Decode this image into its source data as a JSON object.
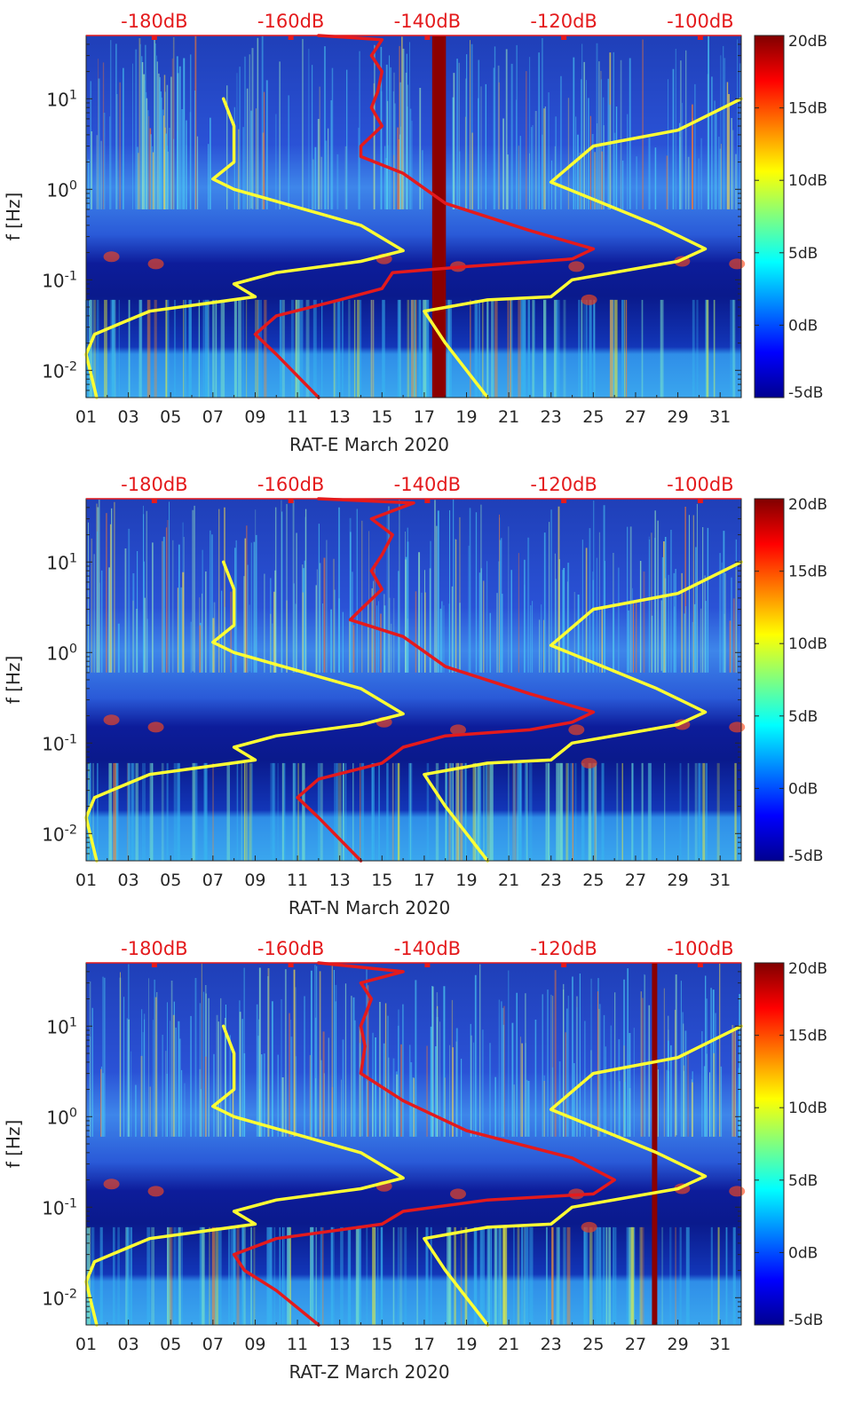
{
  "chart_data": [
    {
      "type": "heatmap",
      "title": "",
      "xlabel": "RAT-E March 2020",
      "ylabel": "f [Hz]",
      "x_tick_labels": [
        "01",
        "03",
        "05",
        "07",
        "09",
        "11",
        "13",
        "15",
        "17",
        "19",
        "21",
        "23",
        "25",
        "27",
        "29",
        "31"
      ],
      "x_range_days": [
        1,
        32
      ],
      "y_scale": "log",
      "y_range_hz": [
        0.005,
        50
      ],
      "y_tick_labels": [
        "10^-2",
        "10^-1",
        "10^0",
        "10^1"
      ],
      "top_axis_labels": [
        "-180dB",
        "-160dB",
        "-140dB",
        "-120dB",
        "-100dB"
      ],
      "top_axis_range_db": [
        -190,
        -94
      ],
      "colorbar": {
        "labels": [
          "20dB",
          "15dB",
          "10dB",
          "5dB",
          "0dB",
          "-5dB"
        ],
        "range_db": [
          -5,
          20
        ]
      },
      "vertical_bands": [
        {
          "day": 17.7,
          "width_days": 0.65
        }
      ],
      "series": [
        {
          "name": "yellow_model_low",
          "color": "#ffff33",
          "points": [
            [
              1.5,
              0.005
            ],
            [
              1.0,
              0.015
            ],
            [
              1.4,
              0.025
            ],
            [
              4,
              0.045
            ],
            [
              9,
              0.065
            ],
            [
              8,
              0.09
            ],
            [
              10,
              0.12
            ],
            [
              14,
              0.16
            ],
            [
              16,
              0.21
            ],
            [
              14,
              0.4
            ],
            [
              8,
              1.0
            ],
            [
              7,
              1.3
            ],
            [
              8,
              2
            ],
            [
              8,
              5
            ],
            [
              7.5,
              10
            ]
          ]
        },
        {
          "name": "yellow_model_high",
          "color": "#ffff33",
          "points": [
            [
              20,
              0.005
            ],
            [
              18,
              0.02
            ],
            [
              17,
              0.045
            ],
            [
              20,
              0.06
            ],
            [
              23,
              0.065
            ],
            [
              24,
              0.1
            ],
            [
              29,
              0.16
            ],
            [
              30.3,
              0.22
            ],
            [
              28,
              0.4
            ],
            [
              23,
              1.2
            ],
            [
              25,
              3
            ],
            [
              29,
              4.5
            ],
            [
              32,
              10
            ]
          ]
        },
        {
          "name": "red_noise_level",
          "color": "#e41a1c",
          "points": [
            [
              12,
              0.005
            ],
            [
              10,
              0.015
            ],
            [
              9,
              0.025
            ],
            [
              10,
              0.04
            ],
            [
              13,
              0.06
            ],
            [
              15,
              0.08
            ],
            [
              15.5,
              0.12
            ],
            [
              19,
              0.14
            ],
            [
              24,
              0.17
            ],
            [
              25,
              0.22
            ],
            [
              22,
              0.35
            ],
            [
              18,
              0.7
            ],
            [
              16,
              1.5
            ],
            [
              14,
              2.3
            ],
            [
              14,
              3
            ],
            [
              15,
              5
            ],
            [
              14.5,
              8
            ],
            [
              14.8,
              12
            ],
            [
              15,
              20
            ],
            [
              14.5,
              30
            ],
            [
              15,
              45
            ],
            [
              12,
              50
            ]
          ]
        }
      ]
    },
    {
      "type": "heatmap",
      "title": "",
      "xlabel": "RAT-N March 2020",
      "ylabel": "f [Hz]",
      "x_tick_labels": [
        "01",
        "03",
        "05",
        "07",
        "09",
        "11",
        "13",
        "15",
        "17",
        "19",
        "21",
        "23",
        "25",
        "27",
        "29",
        "31"
      ],
      "x_range_days": [
        1,
        32
      ],
      "y_scale": "log",
      "y_range_hz": [
        0.005,
        50
      ],
      "y_tick_labels": [
        "10^-2",
        "10^-1",
        "10^0",
        "10^1"
      ],
      "top_axis_labels": [
        "-180dB",
        "-160dB",
        "-140dB",
        "-120dB",
        "-100dB"
      ],
      "top_axis_range_db": [
        -190,
        -94
      ],
      "colorbar": {
        "labels": [
          "20dB",
          "15dB",
          "10dB",
          "5dB",
          "0dB",
          "-5dB"
        ],
        "range_db": [
          -5,
          20
        ]
      },
      "vertical_bands": [],
      "series": [
        {
          "name": "yellow_model_low",
          "color": "#ffff33",
          "points": [
            [
              1.5,
              0.005
            ],
            [
              1.0,
              0.015
            ],
            [
              1.4,
              0.025
            ],
            [
              4,
              0.045
            ],
            [
              9,
              0.065
            ],
            [
              8,
              0.09
            ],
            [
              10,
              0.12
            ],
            [
              14,
              0.16
            ],
            [
              16,
              0.21
            ],
            [
              14,
              0.4
            ],
            [
              8,
              1.0
            ],
            [
              7,
              1.3
            ],
            [
              8,
              2
            ],
            [
              8,
              5
            ],
            [
              7.5,
              10
            ]
          ]
        },
        {
          "name": "yellow_model_high",
          "color": "#ffff33",
          "points": [
            [
              20,
              0.005
            ],
            [
              18,
              0.02
            ],
            [
              17,
              0.045
            ],
            [
              20,
              0.06
            ],
            [
              23,
              0.065
            ],
            [
              24,
              0.1
            ],
            [
              29,
              0.16
            ],
            [
              30.3,
              0.22
            ],
            [
              28,
              0.4
            ],
            [
              23,
              1.2
            ],
            [
              25,
              3
            ],
            [
              29,
              4.5
            ],
            [
              32,
              10
            ]
          ]
        },
        {
          "name": "red_noise_level",
          "color": "#e41a1c",
          "points": [
            [
              14,
              0.005
            ],
            [
              12,
              0.015
            ],
            [
              11,
              0.025
            ],
            [
              12,
              0.04
            ],
            [
              15,
              0.06
            ],
            [
              16,
              0.09
            ],
            [
              18,
              0.12
            ],
            [
              22,
              0.14
            ],
            [
              24,
              0.17
            ],
            [
              25,
              0.22
            ],
            [
              22,
              0.35
            ],
            [
              18,
              0.7
            ],
            [
              16,
              1.5
            ],
            [
              13.5,
              2.3
            ],
            [
              14,
              3
            ],
            [
              15,
              5
            ],
            [
              14.5,
              8
            ],
            [
              15,
              12
            ],
            [
              15.5,
              20
            ],
            [
              14.5,
              30
            ],
            [
              16.5,
              45
            ],
            [
              12,
              50
            ]
          ]
        }
      ]
    },
    {
      "type": "heatmap",
      "title": "",
      "xlabel": "RAT-Z March 2020",
      "ylabel": "f [Hz]",
      "x_tick_labels": [
        "01",
        "03",
        "05",
        "07",
        "09",
        "11",
        "13",
        "15",
        "17",
        "19",
        "21",
        "23",
        "25",
        "27",
        "29",
        "31"
      ],
      "x_range_days": [
        1,
        32
      ],
      "y_scale": "log",
      "y_range_hz": [
        0.005,
        50
      ],
      "y_tick_labels": [
        "10^-2",
        "10^-1",
        "10^0",
        "10^1"
      ],
      "top_axis_labels": [
        "-180dB",
        "-160dB",
        "-140dB",
        "-120dB",
        "-100dB"
      ],
      "top_axis_range_db": [
        -190,
        -94
      ],
      "colorbar": {
        "labels": [
          "20dB",
          "15dB",
          "10dB",
          "5dB",
          "0dB",
          "-5dB"
        ],
        "range_db": [
          -5,
          20
        ]
      },
      "vertical_bands": [
        {
          "day": 27.9,
          "width_days": 0.25
        }
      ],
      "series": [
        {
          "name": "yellow_model_low",
          "color": "#ffff33",
          "points": [
            [
              1.5,
              0.005
            ],
            [
              1.0,
              0.015
            ],
            [
              1.4,
              0.025
            ],
            [
              4,
              0.045
            ],
            [
              9,
              0.065
            ],
            [
              8,
              0.09
            ],
            [
              10,
              0.12
            ],
            [
              14,
              0.16
            ],
            [
              16,
              0.21
            ],
            [
              14,
              0.4
            ],
            [
              8,
              1.0
            ],
            [
              7,
              1.3
            ],
            [
              8,
              2
            ],
            [
              8,
              5
            ],
            [
              7.5,
              10
            ]
          ]
        },
        {
          "name": "yellow_model_high",
          "color": "#ffff33",
          "points": [
            [
              20,
              0.005
            ],
            [
              18,
              0.02
            ],
            [
              17,
              0.045
            ],
            [
              20,
              0.06
            ],
            [
              23,
              0.065
            ],
            [
              24,
              0.1
            ],
            [
              29,
              0.16
            ],
            [
              30.3,
              0.22
            ],
            [
              28,
              0.4
            ],
            [
              23,
              1.2
            ],
            [
              25,
              3
            ],
            [
              29,
              4.5
            ],
            [
              32,
              10
            ]
          ]
        },
        {
          "name": "red_noise_level",
          "color": "#e41a1c",
          "points": [
            [
              12,
              0.005
            ],
            [
              10,
              0.012
            ],
            [
              8.5,
              0.02
            ],
            [
              8,
              0.03
            ],
            [
              10,
              0.045
            ],
            [
              15,
              0.065
            ],
            [
              16,
              0.09
            ],
            [
              20,
              0.12
            ],
            [
              25,
              0.14
            ],
            [
              26,
              0.2
            ],
            [
              24,
              0.35
            ],
            [
              19,
              0.7
            ],
            [
              16,
              1.5
            ],
            [
              14,
              3
            ],
            [
              14.2,
              6
            ],
            [
              14,
              10
            ],
            [
              14.5,
              20
            ],
            [
              14,
              30
            ],
            [
              16,
              40
            ],
            [
              12,
              50
            ]
          ]
        }
      ]
    }
  ]
}
